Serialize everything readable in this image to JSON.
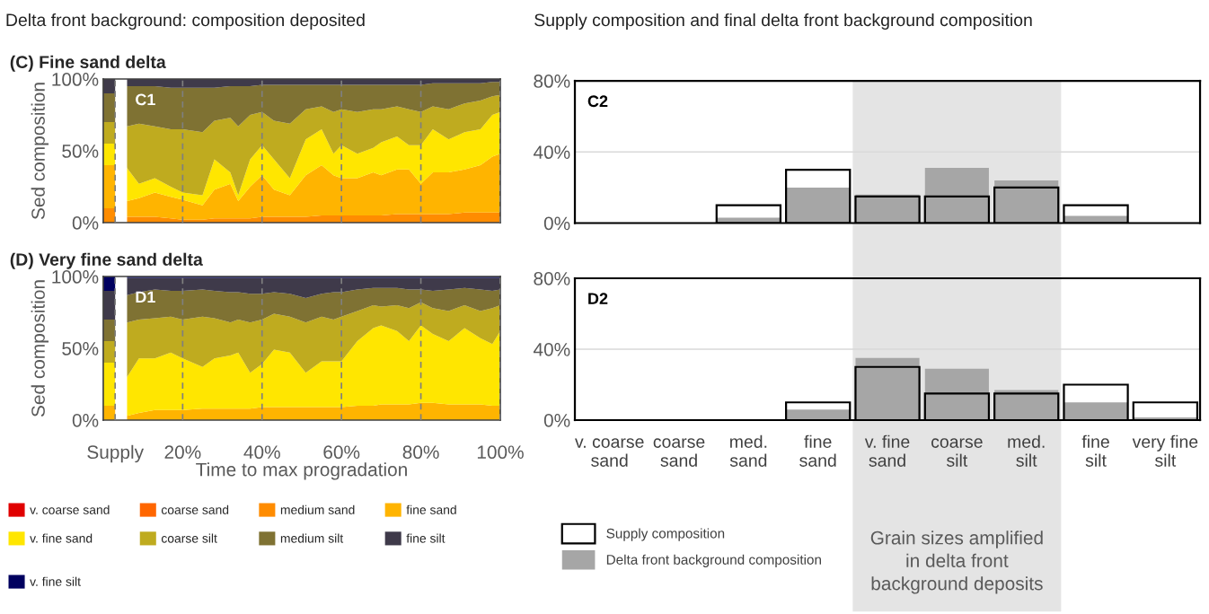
{
  "chart_data": [
    {
      "type": "area",
      "stacked": true,
      "title": "(C) Fine sand delta",
      "ylabel": "Sed composition",
      "annotations": [
        "Delta front background: composition deposited",
        "C1"
      ],
      "x": [
        0,
        3,
        6,
        9,
        13,
        17,
        20,
        25,
        28,
        32,
        34,
        37,
        40,
        43,
        47,
        51,
        55,
        58,
        60,
        64,
        68,
        70,
        74,
        77,
        80,
        83,
        87,
        91,
        95,
        98,
        100
      ],
      "xlim": [
        0,
        100
      ],
      "xticks": [
        {
          "value": 3,
          "label": "Supply"
        },
        {
          "value": 20,
          "label": "20%"
        },
        {
          "value": 40,
          "label": "40%"
        },
        {
          "value": 60,
          "label": "60%"
        },
        {
          "value": 80,
          "label": "80%"
        },
        {
          "value": 100,
          "label": "100%"
        }
      ],
      "ylim": [
        0,
        100
      ],
      "yticks": [
        {
          "value": 0,
          "label": "0%"
        },
        {
          "value": 50,
          "label": "50%"
        },
        {
          "value": 100,
          "label": "100%"
        }
      ],
      "grid": "x",
      "tick_labels": "y",
      "legend": "bottom",
      "bands": [
        {
          "axis": "x",
          "from": 3,
          "to": 6,
          "color": "#ffffff"
        }
      ],
      "series": [
        {
          "name": "v. coarse sand",
          "color": "#e00000",
          "values": [
            null,
            null,
            null,
            null,
            null,
            null,
            null,
            null,
            null,
            null,
            null,
            null,
            null,
            null,
            null,
            null,
            null,
            null,
            null,
            null,
            null,
            null,
            null,
            null,
            null,
            null,
            null,
            null,
            null,
            null,
            null
          ]
        },
        {
          "name": "coarse sand",
          "color": "#ff6600",
          "values": [
            null,
            null,
            null,
            null,
            null,
            null,
            null,
            null,
            null,
            null,
            null,
            null,
            null,
            null,
            null,
            null,
            null,
            null,
            null,
            null,
            null,
            null,
            null,
            null,
            null,
            null,
            null,
            null,
            null,
            null,
            null
          ]
        },
        {
          "name": "medium sand",
          "color": "#ff8c00",
          "values": [
            10,
            10,
            4,
            4,
            4,
            3,
            2,
            2,
            3,
            3,
            3,
            3,
            4,
            4,
            4,
            4,
            5,
            5,
            5,
            5,
            5,
            5,
            6,
            6,
            6,
            6,
            6,
            7,
            7,
            7,
            7
          ]
        },
        {
          "name": "fine sand",
          "color": "#ffb400",
          "values": [
            30,
            30,
            11,
            13,
            17,
            15,
            14,
            10,
            20,
            24,
            12,
            22,
            29,
            19,
            15,
            29,
            35,
            28,
            26,
            26,
            30,
            28,
            31,
            31,
            21,
            29,
            29,
            30,
            33,
            39,
            41
          ]
        },
        {
          "name": "v. fine sand",
          "color": "#ffe600",
          "values": [
            15,
            15,
            23,
            10,
            10,
            7,
            5,
            7,
            21,
            8,
            4,
            19,
            21,
            21,
            12,
            25,
            25,
            15,
            23,
            17,
            17,
            23,
            23,
            17,
            27,
            30,
            23,
            26,
            25,
            29,
            29
          ]
        },
        {
          "name": "coarse silt",
          "color": "#bfab1f",
          "values": [
            15,
            15,
            29,
            42,
            36,
            40,
            44,
            44,
            27,
            38,
            48,
            31,
            23,
            27,
            38,
            21,
            16,
            29,
            25,
            29,
            27,
            23,
            21,
            25,
            23,
            16,
            21,
            20,
            20,
            13,
            12
          ]
        },
        {
          "name": "medium silt",
          "color": "#7f7233",
          "values": [
            20,
            20,
            28,
            26,
            28,
            29,
            29,
            31,
            23,
            22,
            28,
            20,
            19,
            25,
            27,
            17,
            15,
            19,
            17,
            19,
            17,
            17,
            15,
            17,
            19,
            16,
            18,
            14,
            12,
            10,
            9
          ]
        },
        {
          "name": "fine silt",
          "color": "#3f3a4a",
          "values": [
            10,
            10,
            5,
            5,
            5,
            6,
            6,
            6,
            6,
            5,
            5,
            5,
            4,
            4,
            4,
            4,
            4,
            4,
            4,
            4,
            4,
            4,
            4,
            4,
            4,
            3,
            3,
            3,
            3,
            2,
            2
          ]
        }
      ]
    },
    {
      "type": "bar",
      "annotations": [
        "Supply composition and final delta front background composition",
        "C2"
      ],
      "categories": [
        "v. coarse\nsand",
        "coarse\nsand",
        "med.\nsand",
        "fine\nsand",
        "v. fine\nsand",
        "coarse\nsilt",
        "med.\nsilt",
        "fine\nsilt",
        "very fine\nsilt"
      ],
      "ylim": [
        0,
        80
      ],
      "yticks": [
        {
          "value": 0,
          "label": "0%"
        },
        {
          "value": 40,
          "label": "40%"
        },
        {
          "value": 80,
          "label": "80%"
        }
      ],
      "grid": "y",
      "tick_labels": "y",
      "legend": "bottom left",
      "bands": [
        {
          "axis": "x",
          "from": "v. fine\nsand",
          "to": "med.\nsilt",
          "color": "#e4e4e4"
        }
      ],
      "series": [
        {
          "name": "Supply composition",
          "color": "#000000",
          "values": [
            null,
            null,
            10,
            30,
            15,
            15,
            20,
            10,
            null
          ]
        },
        {
          "name": "Delta front background composition",
          "color": "#a6a6a6",
          "values": [
            null,
            null,
            3,
            20,
            16,
            31,
            24,
            4,
            null
          ]
        }
      ]
    },
    {
      "type": "area",
      "stacked": true,
      "title": "(D) Very fine sand delta",
      "ylabel": "Sed composition",
      "xlabel": "Time to max progradation",
      "annotations": [
        "D1"
      ],
      "legend": "bottom",
      "x": [
        0,
        3,
        6,
        9,
        13,
        17,
        20,
        25,
        28,
        32,
        34,
        37,
        40,
        43,
        47,
        51,
        55,
        58,
        60,
        64,
        68,
        70,
        74,
        77,
        80,
        83,
        87,
        91,
        95,
        98,
        100
      ],
      "xlim": [
        0,
        100
      ],
      "xticks": [
        {
          "value": 3,
          "label": "Supply"
        },
        {
          "value": 20,
          "label": "20%"
        },
        {
          "value": 40,
          "label": "40%"
        },
        {
          "value": 60,
          "label": "60%"
        },
        {
          "value": 80,
          "label": "80%"
        },
        {
          "value": 100,
          "label": "100%"
        }
      ],
      "ylim": [
        0,
        100
      ],
      "yticks": [
        {
          "value": 0,
          "label": "0%"
        },
        {
          "value": 50,
          "label": "50%"
        },
        {
          "value": 100,
          "label": "100%"
        }
      ],
      "grid": "x",
      "bands": [
        {
          "axis": "x",
          "from": 3,
          "to": 6,
          "color": "#ffffff"
        }
      ],
      "series": [
        {
          "color": "#ffb400",
          "values": [
            10,
            10,
            3,
            5,
            7,
            7,
            7,
            8,
            8,
            8,
            8,
            8,
            9,
            9,
            9,
            9,
            9,
            9,
            9,
            10,
            10,
            11,
            11,
            11,
            12,
            12,
            11,
            11,
            11,
            10,
            10
          ]
        },
        {
          "color": "#ffe600",
          "values": [
            30,
            30,
            27,
            38,
            36,
            40,
            36,
            29,
            35,
            37,
            39,
            25,
            30,
            40,
            38,
            24,
            32,
            32,
            32,
            45,
            54,
            55,
            51,
            44,
            54,
            48,
            44,
            53,
            46,
            43,
            52
          ]
        },
        {
          "color": "#bfab1f",
          "values": [
            15,
            15,
            38,
            27,
            28,
            25,
            27,
            35,
            28,
            23,
            23,
            35,
            31,
            25,
            25,
            35,
            31,
            29,
            31,
            21,
            16,
            13,
            18,
            23,
            16,
            18,
            21,
            16,
            19,
            25,
            18
          ]
        },
        {
          "color": "#7f7233",
          "values": [
            15,
            15,
            19,
            19,
            20,
            18,
            20,
            19,
            19,
            21,
            19,
            20,
            18,
            15,
            16,
            17,
            16,
            19,
            17,
            15,
            12,
            13,
            12,
            13,
            9,
            12,
            15,
            12,
            15,
            12,
            11
          ]
        },
        {
          "color": "#3f3a4a",
          "values": [
            20,
            20,
            12,
            10,
            8,
            9,
            9,
            8,
            9,
            10,
            10,
            11,
            11,
            10,
            11,
            14,
            11,
            10,
            10,
            8,
            7,
            7,
            7,
            8,
            8,
            9,
            8,
            7,
            8,
            9,
            8
          ]
        },
        {
          "name": "v. fine silt",
          "color": "#00005f",
          "values": [
            10,
            10,
            1,
            1,
            1,
            1,
            1,
            1,
            1,
            1,
            1,
            1,
            1,
            1,
            1,
            1,
            1,
            1,
            1,
            1,
            1,
            1,
            1,
            1,
            1,
            1,
            1,
            1,
            1,
            1,
            1
          ]
        }
      ]
    },
    {
      "type": "bar",
      "annotations": [
        "D2"
      ],
      "categories": [
        "v. coarse\nsand",
        "coarse\nsand",
        "med.\nsand",
        "fine\nsand",
        "v. fine\nsand",
        "coarse\nsilt",
        "med.\nsilt",
        "fine\nsilt",
        "very fine\nsilt"
      ],
      "ylim": [
        0,
        80
      ],
      "yticks": [
        {
          "value": 0,
          "label": "0%"
        },
        {
          "value": 40,
          "label": "40%"
        },
        {
          "value": 80,
          "label": "80%"
        }
      ],
      "grid": "y",
      "bands": [
        {
          "axis": "x",
          "from": "v. fine\nsand",
          "to": "med.\nsilt",
          "color": "#e4e4e4",
          "label": "Grain sizes amplified\nin delta front\nbackground deposits"
        }
      ],
      "series": [
        {
          "color": "#000000",
          "values": [
            null,
            null,
            null,
            10,
            30,
            15,
            15,
            20,
            10
          ]
        },
        {
          "color": "#a6a6a6",
          "values": [
            null,
            null,
            null,
            6,
            35,
            29,
            17,
            10,
            1.5
          ]
        }
      ]
    }
  ]
}
